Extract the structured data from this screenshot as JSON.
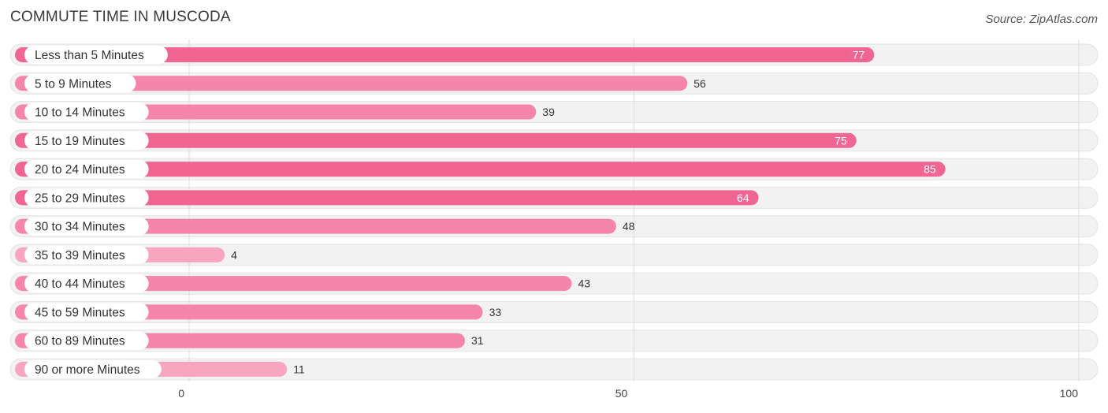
{
  "title": "COMMUTE TIME IN MUSCODA",
  "source": "Source: ZipAtlas.com",
  "colors": {
    "bar_strong": "#f06592",
    "bar_mid": "#f585aa",
    "bar_light": "#f8a5c0",
    "track": "#f2f2f2",
    "grid": "#dddddd"
  },
  "chart_data": {
    "type": "bar",
    "orientation": "horizontal",
    "title": "COMMUTE TIME IN MUSCODA",
    "categories": [
      "Less than 5 Minutes",
      "5 to 9 Minutes",
      "10 to 14 Minutes",
      "15 to 19 Minutes",
      "20 to 24 Minutes",
      "25 to 29 Minutes",
      "30 to 34 Minutes",
      "35 to 39 Minutes",
      "40 to 44 Minutes",
      "45 to 59 Minutes",
      "60 to 89 Minutes",
      "90 or more Minutes"
    ],
    "values": [
      77,
      56,
      39,
      75,
      85,
      64,
      48,
      4,
      43,
      33,
      31,
      11
    ],
    "xlim": [
      0,
      100
    ],
    "xticks": [
      0,
      50,
      100
    ],
    "xlabel": "",
    "ylabel": "",
    "grid": true
  }
}
